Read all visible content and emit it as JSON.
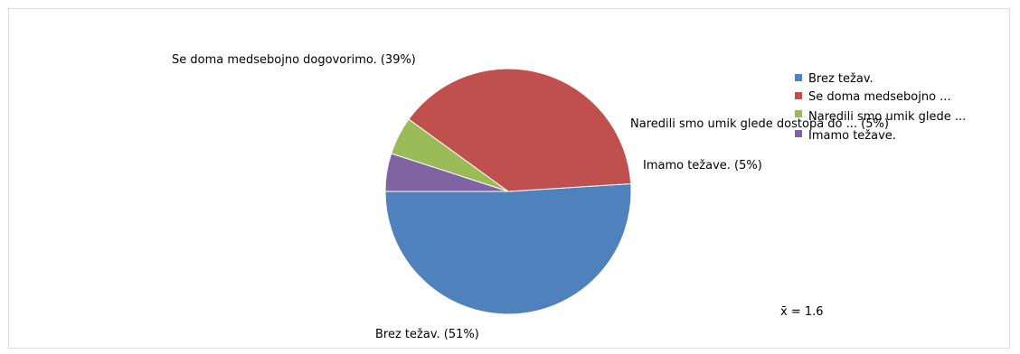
{
  "chart_data": {
    "type": "pie",
    "title": "",
    "slices": [
      {
        "legend": "Brez težav.",
        "label": "Brez težav. (51%)",
        "value": 51,
        "color": "#4f81bd"
      },
      {
        "legend": "Se doma medsebojno ...",
        "label": "Se doma medsebojno dogovorimo. (39%)",
        "value": 39,
        "color": "#c0504d"
      },
      {
        "legend": "Naredili smo umik glede ...",
        "label": "Naredili smo umik glede dostopa do ... (5%)",
        "value": 5,
        "color": "#9bbb59"
      },
      {
        "legend": "Imamo težave.",
        "label": "Imamo težave. (5%)",
        "value": 5,
        "color": "#8064a2"
      }
    ],
    "legend_position": "right",
    "mean": "x̄ = 1.6"
  }
}
